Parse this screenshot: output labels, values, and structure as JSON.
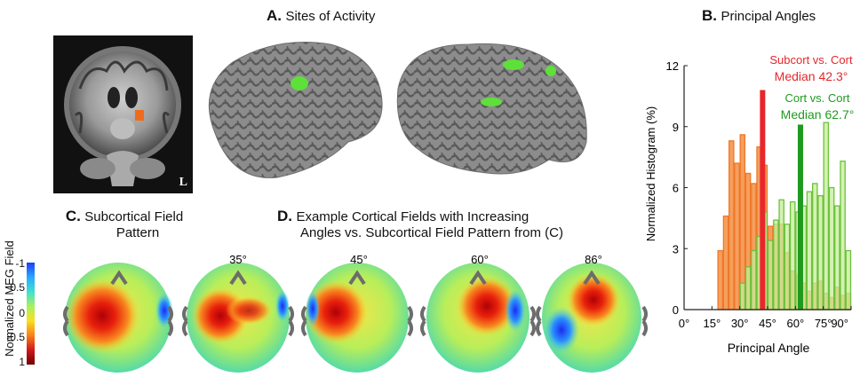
{
  "panelA": {
    "letter": "A.",
    "title": "Sites of Activity",
    "mri_label": "L"
  },
  "panelB": {
    "letter": "B.",
    "title": "Principal Angles"
  },
  "panelC": {
    "letter": "C.",
    "title_line1": "Subcortical Field",
    "title_line2": "Pattern"
  },
  "panelD": {
    "letter": "D.",
    "title_line1": "Example Cortical Fields with Increasing",
    "title_line2": "Angles vs. Subcortical Field Pattern from (C)"
  },
  "colorbar": {
    "label": "Normalized MEG Field",
    "ticks": [
      "-1",
      "0.5",
      "0",
      "-0.5",
      "1"
    ]
  },
  "heads": [
    {
      "angle_label": ""
    },
    {
      "angle_label": "35°"
    },
    {
      "angle_label": "45°"
    },
    {
      "angle_label": "60°"
    },
    {
      "angle_label": "86°"
    }
  ],
  "chart_data": {
    "type": "bar",
    "xlabel": "Principal Angle",
    "ylabel": "Normalized Histogram (%)",
    "xlim": [
      0,
      90
    ],
    "ylim": [
      0,
      12
    ],
    "xticks": [
      {
        "value": 0,
        "label": "0°"
      },
      {
        "value": 15,
        "label": "15°"
      },
      {
        "value": 30,
        "label": "30°"
      },
      {
        "value": 45,
        "label": "45°"
      },
      {
        "value": 60,
        "label": "60°"
      },
      {
        "value": 75,
        "label": "75°"
      },
      {
        "value": 90,
        "label": "90°"
      }
    ],
    "yticks": [
      0,
      3,
      6,
      9,
      12
    ],
    "bin_width": 3,
    "series": [
      {
        "name": "Subcort vs. Cort",
        "color": "#f07828",
        "fill": "#f49a55",
        "bins": [
          18,
          21,
          24,
          27,
          30,
          33,
          36,
          39,
          42,
          45,
          48,
          51,
          54,
          57,
          60,
          63,
          66,
          69,
          72,
          75,
          78,
          81,
          84,
          87
        ],
        "values": [
          2.9,
          4.6,
          8.3,
          7.2,
          8.6,
          6.7,
          6.2,
          8.0,
          7.1,
          4.1,
          4.2,
          4.2,
          2.8,
          1.9,
          1.7,
          1.3,
          0.9,
          1.3,
          1.4,
          0.8,
          0.6,
          1.1,
          0.7,
          0.8
        ],
        "median_value": 42.3,
        "median_label": "Median 42.3°",
        "median_color": "#e8262b"
      },
      {
        "name": "Cort vs. Cort",
        "color": "#6cc23d",
        "fill": "#c6ee99",
        "bins": [
          30,
          33,
          36,
          39,
          42,
          45,
          48,
          51,
          54,
          57,
          60,
          63,
          66,
          69,
          72,
          75,
          78,
          81,
          84,
          87
        ],
        "values": [
          1.3,
          2.1,
          2.9,
          3.6,
          4.8,
          3.4,
          4.4,
          5.4,
          4.2,
          5.3,
          4.8,
          5.1,
          5.8,
          6.2,
          5.6,
          9.2,
          6.0,
          5.1,
          7.3,
          2.9
        ],
        "median_value": 62.7,
        "median_label": "Median 62.7°",
        "median_color": "#1f9a1f"
      }
    ]
  }
}
